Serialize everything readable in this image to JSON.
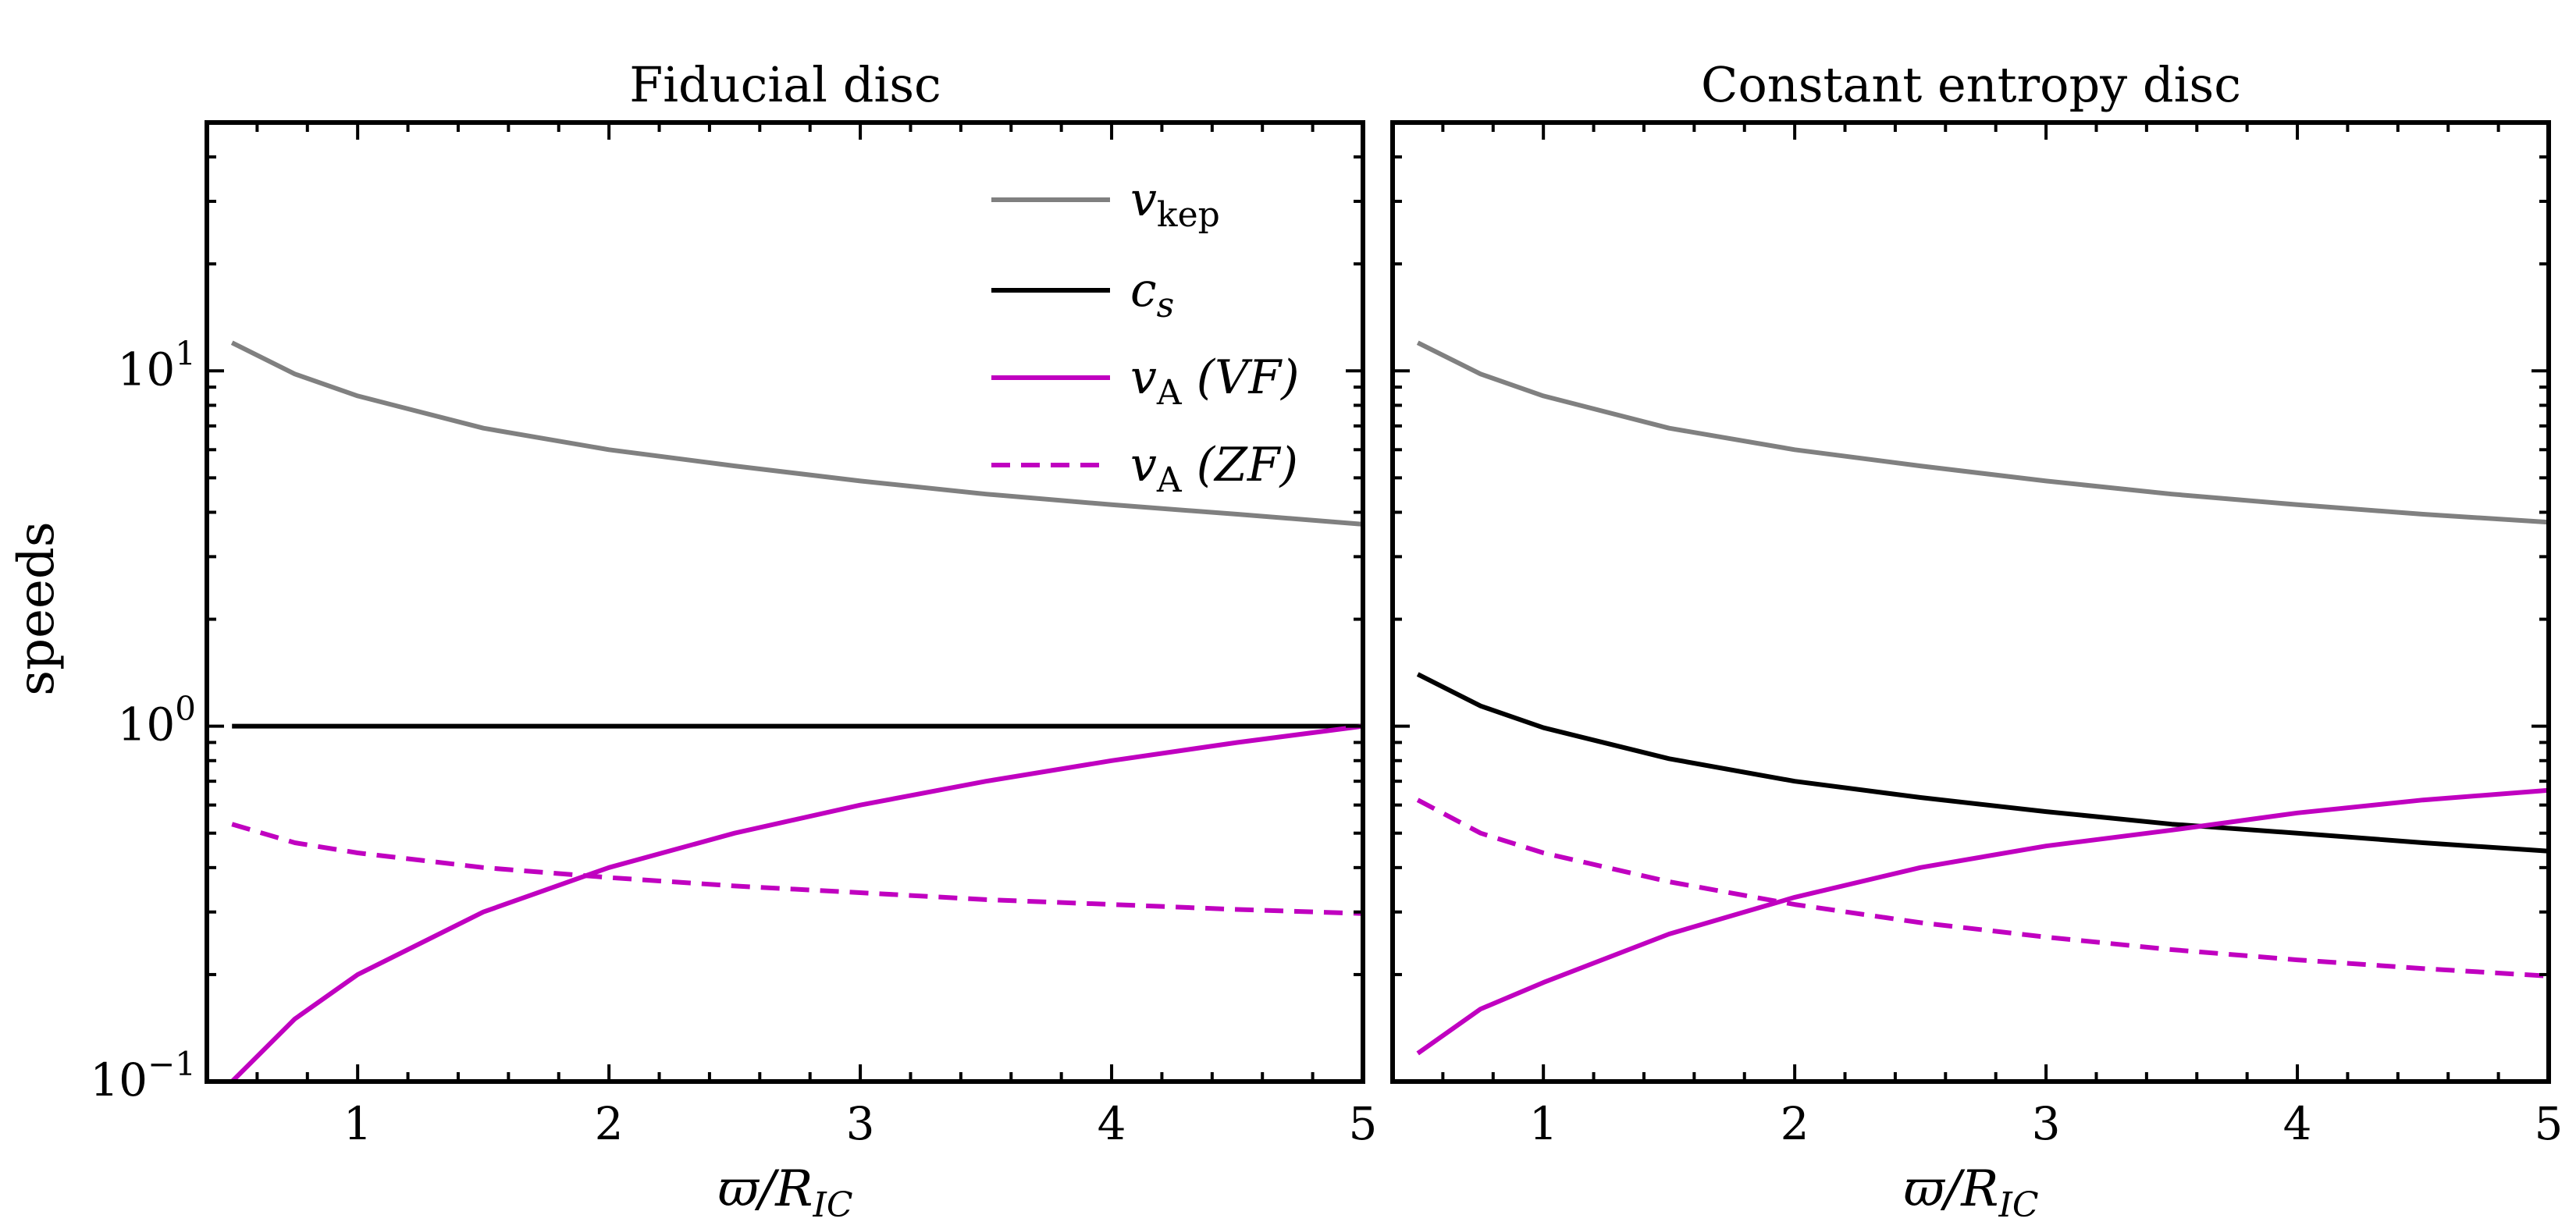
{
  "chart_data": [
    {
      "type": "line",
      "title": "Fiducial disc",
      "ylabel": "speeds",
      "xlabel": {
        "main": "ϖ/R",
        "sub": "IC"
      },
      "xlim": [
        0.4,
        5.0
      ],
      "ylim": [
        0.1,
        50
      ],
      "yscale": "log",
      "x_ticks": [
        "1",
        "2",
        "3",
        "4",
        "5"
      ],
      "y_ticks": [
        {
          "base": "10",
          "exp": "1",
          "value": 10
        },
        {
          "base": "10",
          "exp": "0",
          "value": 1
        },
        {
          "base": "10",
          "exp": "−1",
          "value": 0.1
        }
      ],
      "legend": {
        "position": "upper-right"
      },
      "series": [
        {
          "id": "vkep",
          "name": {
            "sym": "v",
            "sub": "kep",
            "rest": ""
          },
          "color": "#808080",
          "dash": "solid",
          "x": [
            0.5,
            0.75,
            1.0,
            1.5,
            2.0,
            2.5,
            3.0,
            3.5,
            4.0,
            4.5,
            5.0
          ],
          "y": [
            12.0,
            9.8,
            8.5,
            6.9,
            6.0,
            5.4,
            4.9,
            4.5,
            4.2,
            3.95,
            3.7
          ]
        },
        {
          "id": "cs",
          "name": {
            "sym": "c",
            "sub": "s",
            "rest": ""
          },
          "color": "#000000",
          "dash": "solid",
          "x": [
            0.5,
            1.0,
            2.0,
            3.0,
            4.0,
            5.0
          ],
          "y": [
            1.0,
            1.0,
            1.0,
            1.0,
            1.0,
            1.0
          ]
        },
        {
          "id": "vaVF",
          "name": {
            "sym": "v",
            "sub": "A",
            "rest": " (VF)"
          },
          "color": "#c000c0",
          "dash": "solid",
          "x": [
            0.5,
            0.75,
            1.0,
            1.5,
            2.0,
            2.5,
            3.0,
            3.5,
            4.0,
            4.5,
            5.0
          ],
          "y": [
            0.1,
            0.15,
            0.2,
            0.3,
            0.4,
            0.5,
            0.6,
            0.7,
            0.8,
            0.9,
            1.0
          ]
        },
        {
          "id": "vaZF",
          "name": {
            "sym": "v",
            "sub": "A",
            "rest": " (ZF)"
          },
          "color": "#c000c0",
          "dash": "dashed",
          "x": [
            0.5,
            0.75,
            1.0,
            1.5,
            2.0,
            2.5,
            3.0,
            3.5,
            4.0,
            4.5,
            5.0
          ],
          "y": [
            0.53,
            0.47,
            0.44,
            0.4,
            0.375,
            0.355,
            0.34,
            0.325,
            0.315,
            0.305,
            0.297
          ]
        }
      ]
    },
    {
      "type": "line",
      "title": "Constant entropy disc",
      "xlabel": {
        "main": "ϖ/R",
        "sub": "IC"
      },
      "xlim": [
        0.4,
        5.0
      ],
      "ylim": [
        0.1,
        50
      ],
      "yscale": "log",
      "x_ticks": [
        "1",
        "2",
        "3",
        "4",
        "5"
      ],
      "series": [
        {
          "id": "vkep",
          "color": "#808080",
          "dash": "solid",
          "x": [
            0.5,
            0.75,
            1.0,
            1.5,
            2.0,
            2.5,
            3.0,
            3.5,
            4.0,
            4.5,
            5.0
          ],
          "y": [
            12.0,
            9.8,
            8.5,
            6.9,
            6.0,
            5.4,
            4.9,
            4.5,
            4.2,
            3.95,
            3.75
          ]
        },
        {
          "id": "cs",
          "color": "#000000",
          "dash": "solid",
          "x": [
            0.5,
            0.75,
            1.0,
            1.5,
            2.0,
            2.5,
            3.0,
            3.5,
            4.0,
            4.5,
            5.0
          ],
          "y": [
            1.4,
            1.14,
            0.99,
            0.81,
            0.7,
            0.63,
            0.575,
            0.53,
            0.5,
            0.47,
            0.445
          ]
        },
        {
          "id": "vaVF",
          "color": "#c000c0",
          "dash": "solid",
          "x": [
            0.5,
            0.75,
            1.0,
            1.5,
            2.0,
            2.5,
            3.0,
            3.5,
            4.0,
            4.5,
            5.0
          ],
          "y": [
            0.12,
            0.16,
            0.19,
            0.26,
            0.33,
            0.4,
            0.46,
            0.51,
            0.57,
            0.62,
            0.66
          ]
        },
        {
          "id": "vaZF",
          "color": "#c000c0",
          "dash": "dashed",
          "x": [
            0.5,
            0.75,
            1.0,
            1.5,
            2.0,
            2.5,
            3.0,
            3.5,
            4.0,
            4.5,
            5.0
          ],
          "y": [
            0.62,
            0.5,
            0.44,
            0.365,
            0.315,
            0.28,
            0.255,
            0.235,
            0.22,
            0.208,
            0.198
          ]
        }
      ]
    }
  ]
}
